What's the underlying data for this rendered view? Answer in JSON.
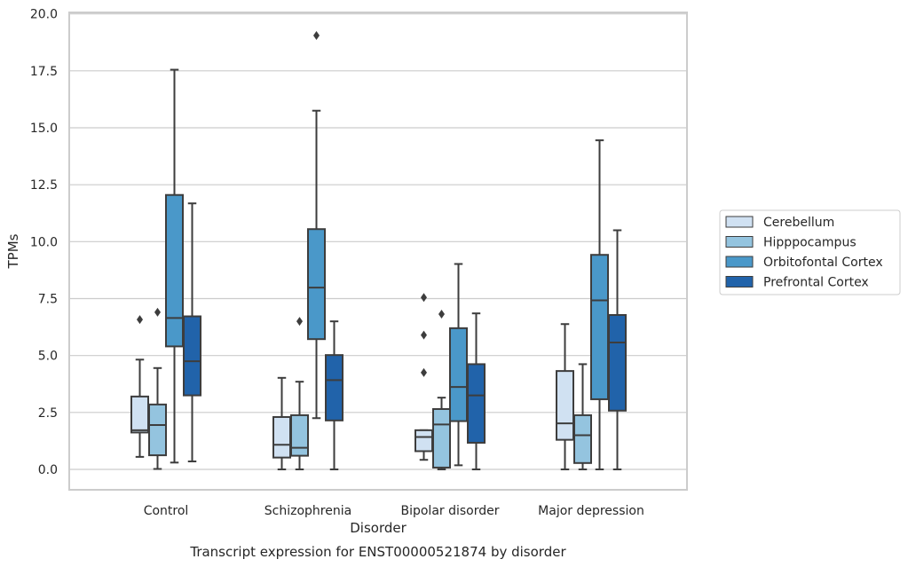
{
  "chart_data": {
    "type": "box",
    "xlabel": "Disorder",
    "ylabel": "TPMs",
    "caption": "Transcript expression for ENST00000521874 by disorder",
    "categories": [
      "Control",
      "Schizophrenia",
      "Bipolar disorder",
      "Major depression"
    ],
    "ylim": [
      -0.9,
      20.0
    ],
    "yticks": [
      0.0,
      2.5,
      5.0,
      7.5,
      10.0,
      12.5,
      15.0,
      17.5,
      20.0
    ],
    "ytick_labels": [
      "0.0",
      "2.5",
      "5.0",
      "7.5",
      "10.0",
      "12.5",
      "15.0",
      "17.5",
      "20.0"
    ],
    "grid": true,
    "legend_position": "right",
    "series": [
      {
        "name": "Cerebellum",
        "color": "#d0e1f2",
        "boxes": [
          {
            "whislo": 0.55,
            "q1": 1.62,
            "med": 1.72,
            "q3": 3.2,
            "whishi": 4.82,
            "fliers": [
              6.58
            ]
          },
          {
            "whislo": 0.0,
            "q1": 0.52,
            "med": 1.08,
            "q3": 2.3,
            "whishi": 4.02,
            "fliers": []
          },
          {
            "whislo": 0.42,
            "q1": 0.8,
            "med": 1.42,
            "q3": 1.72,
            "whishi": 1.72,
            "fliers": [
              4.25,
              5.9,
              7.55
            ]
          },
          {
            "whislo": 0.0,
            "q1": 1.3,
            "med": 2.02,
            "q3": 4.32,
            "whishi": 6.38,
            "fliers": []
          }
        ]
      },
      {
        "name": "Hipppocampus",
        "color": "#94c4df",
        "boxes": [
          {
            "whislo": 0.02,
            "q1": 0.62,
            "med": 1.95,
            "q3": 2.85,
            "whishi": 4.45,
            "fliers": [
              6.9
            ]
          },
          {
            "whislo": 0.0,
            "q1": 0.6,
            "med": 0.95,
            "q3": 2.38,
            "whishi": 3.85,
            "fliers": [
              6.5
            ]
          },
          {
            "whislo": 0.0,
            "q1": 0.08,
            "med": 1.97,
            "q3": 2.65,
            "whishi": 3.15,
            "fliers": [
              6.82
            ]
          },
          {
            "whislo": 0.0,
            "q1": 0.28,
            "med": 1.5,
            "q3": 2.38,
            "whishi": 4.62,
            "fliers": []
          }
        ]
      },
      {
        "name": "Orbitofontal Cortex",
        "color": "#4a98c9",
        "boxes": [
          {
            "whislo": 0.3,
            "q1": 5.4,
            "med": 6.65,
            "q3": 12.05,
            "whishi": 17.55,
            "fliers": []
          },
          {
            "whislo": 2.25,
            "q1": 5.72,
            "med": 7.98,
            "q3": 10.55,
            "whishi": 15.75,
            "fliers": [
              19.05
            ]
          },
          {
            "whislo": 0.18,
            "q1": 2.12,
            "med": 3.62,
            "q3": 6.2,
            "whishi": 9.02,
            "fliers": []
          },
          {
            "whislo": 0.0,
            "q1": 3.08,
            "med": 7.42,
            "q3": 9.42,
            "whishi": 14.45,
            "fliers": []
          }
        ]
      },
      {
        "name": "Prefrontal Cortex",
        "color": "#2163aa",
        "boxes": [
          {
            "whislo": 0.35,
            "q1": 3.25,
            "med": 4.75,
            "q3": 6.72,
            "whishi": 11.68,
            "fliers": []
          },
          {
            "whislo": 0.0,
            "q1": 2.15,
            "med": 3.92,
            "q3": 5.02,
            "whishi": 6.5,
            "fliers": []
          },
          {
            "whislo": 0.0,
            "q1": 1.17,
            "med": 3.25,
            "q3": 4.62,
            "whishi": 6.85,
            "fliers": []
          },
          {
            "whislo": 0.0,
            "q1": 2.58,
            "med": 5.57,
            "q3": 6.78,
            "whishi": 10.5,
            "fliers": []
          }
        ]
      }
    ]
  }
}
